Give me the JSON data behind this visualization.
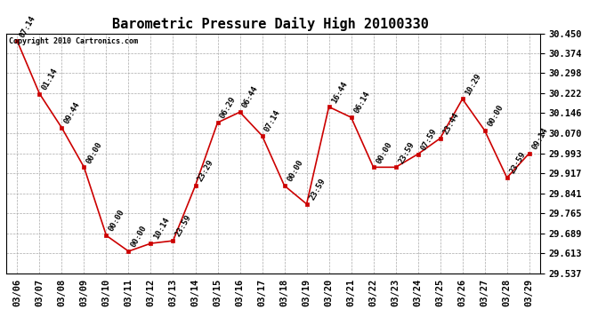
{
  "title": "Barometric Pressure Daily High 20100330",
  "copyright": "Copyright 2010 Cartronics.com",
  "x_labels": [
    "03/06",
    "03/07",
    "03/08",
    "03/09",
    "03/10",
    "03/11",
    "03/12",
    "03/13",
    "03/14",
    "03/15",
    "03/16",
    "03/17",
    "03/18",
    "03/19",
    "03/20",
    "03/21",
    "03/22",
    "03/23",
    "03/24",
    "03/25",
    "03/26",
    "03/27",
    "03/28",
    "03/29"
  ],
  "y_values": [
    30.42,
    30.22,
    30.09,
    29.94,
    29.68,
    29.62,
    29.65,
    29.66,
    29.87,
    30.11,
    30.15,
    30.06,
    29.87,
    29.8,
    30.17,
    30.13,
    29.94,
    29.94,
    29.99,
    30.05,
    30.2,
    30.08,
    29.9,
    29.993
  ],
  "time_labels": [
    "07:14",
    "01:14",
    "09:44",
    "00:00",
    "00:00",
    "00:00",
    "10:14",
    "23:59",
    "23:29",
    "06:29",
    "06:44",
    "07:14",
    "00:00",
    "23:59",
    "16:44",
    "06:14",
    "00:00",
    "23:59",
    "07:59",
    "23:44",
    "10:29",
    "00:00",
    "23:59",
    "09:14"
  ],
  "ylim_min": 29.537,
  "ylim_max": 30.45,
  "yticks": [
    29.537,
    29.613,
    29.689,
    29.765,
    29.841,
    29.917,
    29.993,
    30.07,
    30.146,
    30.222,
    30.298,
    30.374,
    30.45
  ],
  "line_color": "#cc0000",
  "marker_color": "#cc0000",
  "bg_color": "#ffffff",
  "grid_color": "#aaaaaa",
  "title_fontsize": 11,
  "tick_fontsize": 7.5,
  "annotation_fontsize": 6.5
}
